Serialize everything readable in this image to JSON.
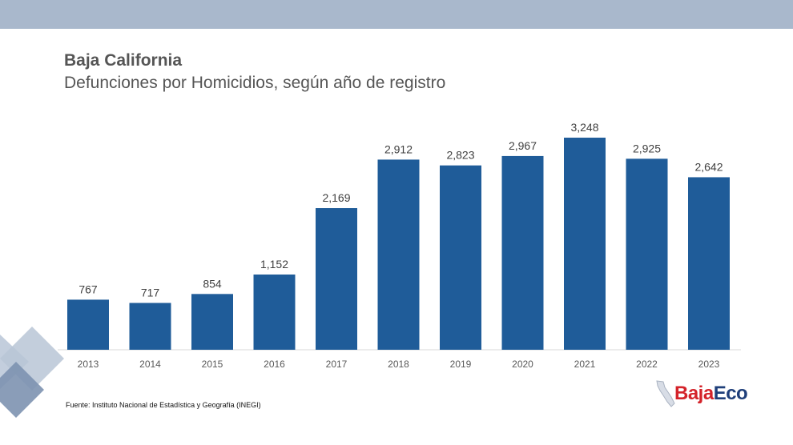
{
  "header": {
    "title": "Baja California",
    "subtitle": "Defunciones por Homicidios, según año de registro"
  },
  "chart_data": {
    "type": "bar",
    "categories": [
      "2013",
      "2014",
      "2015",
      "2016",
      "2017",
      "2018",
      "2019",
      "2020",
      "2021",
      "2022",
      "2023"
    ],
    "values": [
      767,
      717,
      854,
      1152,
      2169,
      2912,
      2823,
      2967,
      3248,
      2925,
      2642
    ],
    "value_labels": [
      "767",
      "717",
      "854",
      "1,152",
      "2,169",
      "2,912",
      "2,823",
      "2,967",
      "3,248",
      "2,925",
      "2,642"
    ],
    "ylim": [
      0,
      3500
    ],
    "grid": false,
    "bar_color": "#1f5c99"
  },
  "footer": {
    "source": "Fuente: Instituto Nacional de Estadística y Geografía (INEGI)"
  },
  "logo": {
    "part1": "Baja",
    "part2": "Eco",
    "color1": "#d4232a",
    "color2": "#1f3f7a"
  },
  "colors": {
    "top_band": "#a9b8cc",
    "decoration": "#8094b0"
  }
}
